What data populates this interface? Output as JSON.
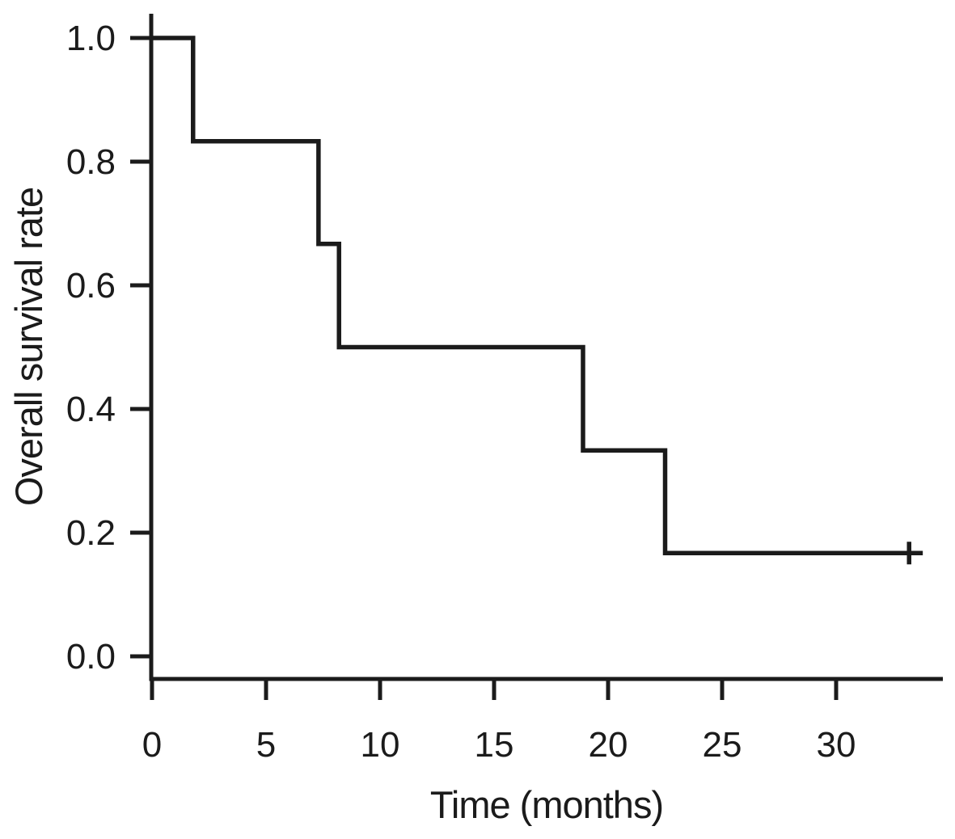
{
  "figure": {
    "background_color": "#ffffff",
    "ink_color": "#1b1b1b"
  },
  "chart_data": {
    "type": "line",
    "subtype": "kaplan-meier-step",
    "title": "",
    "xlabel": "Time (months)",
    "ylabel": "Overall survival rate",
    "xlim": [
      0,
      34.7
    ],
    "ylim": [
      0,
      1.0
    ],
    "grid": false,
    "legend_position": "none",
    "line_color": "#1b1b1b",
    "axis_color": "#1b1b1b",
    "xticks": {
      "values": [
        0,
        5,
        10,
        15,
        20,
        25,
        30
      ],
      "labels": [
        "0",
        "5",
        "10",
        "15",
        "20",
        "25",
        "30"
      ]
    },
    "yticks": {
      "values": [
        0.0,
        0.2,
        0.4,
        0.6,
        0.8,
        1.0
      ],
      "labels": [
        "0.0",
        "0.2",
        "0.4",
        "0.6",
        "0.8",
        "1.0"
      ]
    },
    "series": [
      {
        "name": "Overall survival",
        "step_times": [
          0,
          1.8,
          7.3,
          8.2,
          18.9,
          22.5,
          33.8
        ],
        "step_survival": [
          1.0,
          0.833,
          0.667,
          0.5,
          0.333,
          0.167,
          0.167
        ],
        "censor_marks": [
          {
            "time": 33.2,
            "survival": 0.167
          }
        ]
      }
    ]
  }
}
